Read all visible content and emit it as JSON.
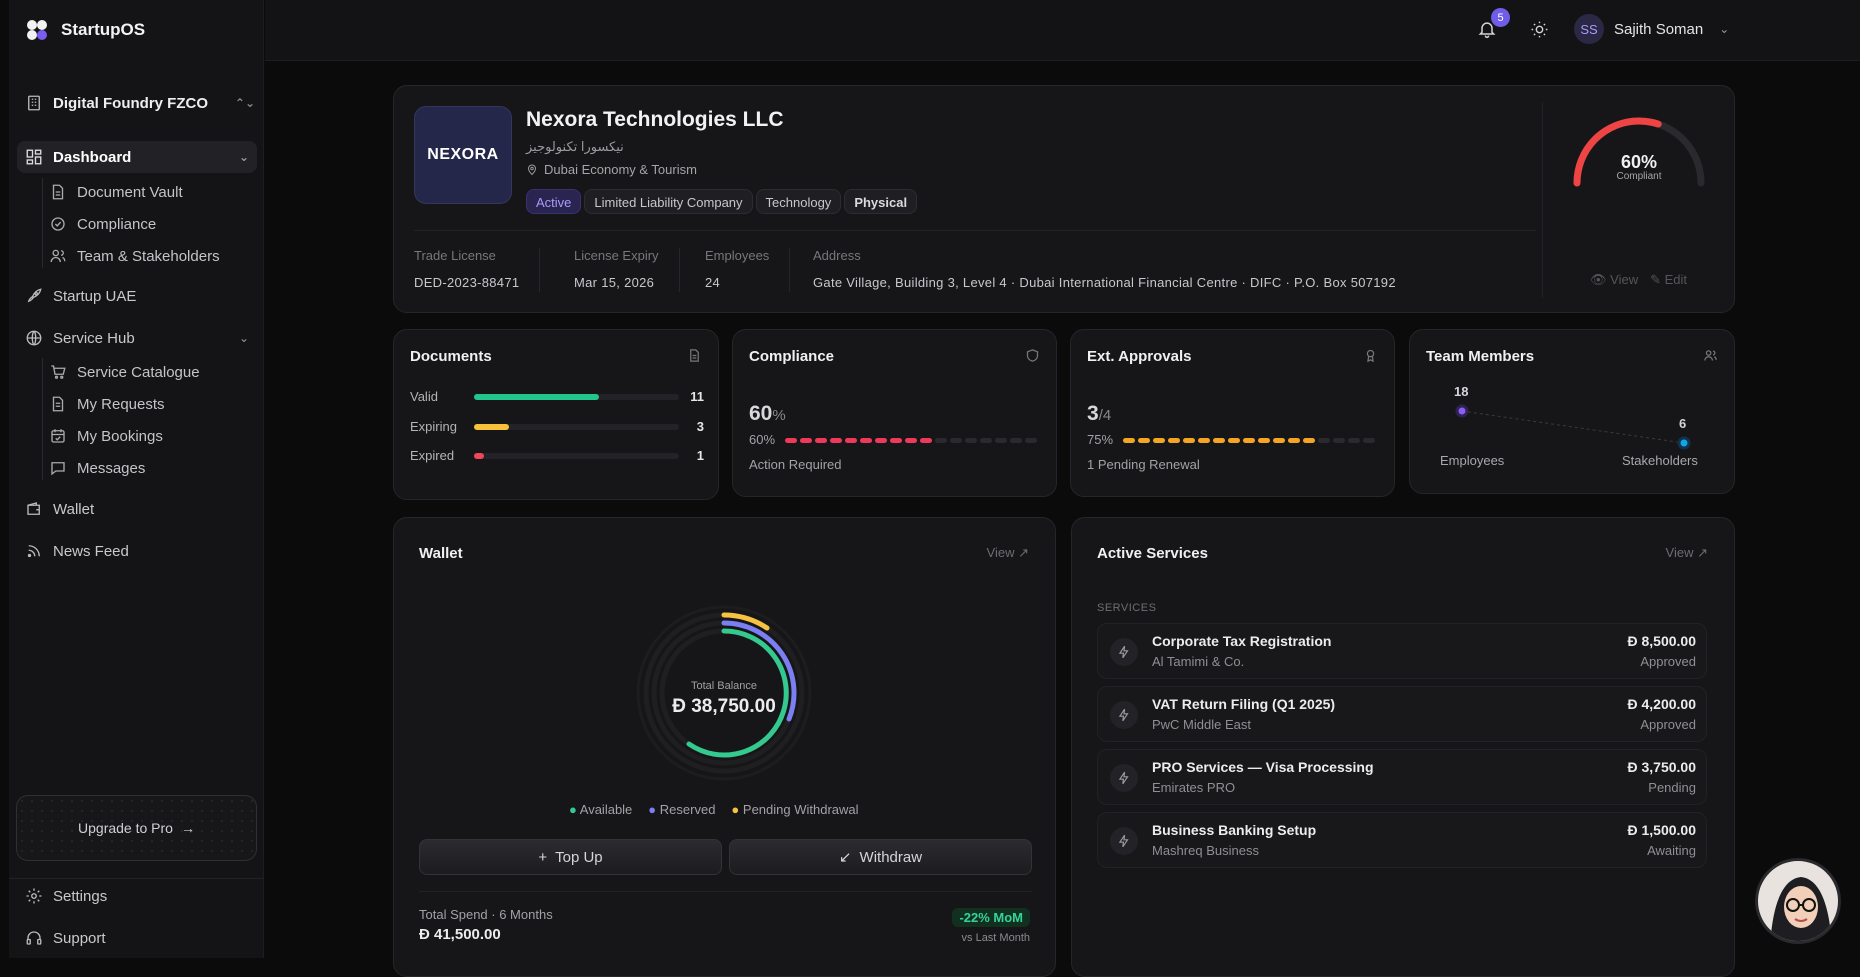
{
  "brand": {
    "name": "StartupOS"
  },
  "org": {
    "name": "Digital Foundry FZCO"
  },
  "nav": {
    "dashboard": "Dashboard",
    "document_vault": "Document Vault",
    "compliance": "Compliance",
    "team": "Team & Stakeholders",
    "startup_uae": "Startup UAE",
    "service_hub": "Service Hub",
    "service_catalogue": "Service Catalogue",
    "my_requests": "My Requests",
    "my_bookings": "My Bookings",
    "messages": "Messages",
    "wallet": "Wallet",
    "news_feed": "News Feed",
    "settings": "Settings",
    "support": "Support"
  },
  "upgrade": {
    "label": "Upgrade to Pro"
  },
  "topbar": {
    "notification_count": "5",
    "user_initials": "SS",
    "user_name": "Sajith Soman"
  },
  "company": {
    "logo_text": "NEXORA",
    "name": "Nexora Technologies LLC",
    "arabic_name": "نيكسورا تكنولوجيز",
    "authority": "Dubai Economy & Tourism",
    "tags": [
      "Active",
      "Limited Liability Company",
      "Technology",
      "Physical"
    ],
    "compliance_pct": "60%",
    "compliance_label": "Compliant",
    "compliance_value": 0.6,
    "view": "View",
    "edit": "Edit",
    "meta": [
      {
        "label": "Trade License",
        "value": "DED-2023-88471"
      },
      {
        "label": "License Expiry",
        "value": "Mar 15, 2026"
      },
      {
        "label": "Employees",
        "value": "24"
      },
      {
        "label": "Address",
        "value": "Gate Village, Building 3, Level 4 · Dubai International Financial Centre · DIFC · P.O. Box 507192"
      }
    ]
  },
  "documents": {
    "title": "Documents",
    "rows": [
      {
        "label": "Valid",
        "count": "11",
        "fraction": 0.61,
        "color": "#22c58b"
      },
      {
        "label": "Expiring",
        "count": "3",
        "fraction": 0.17,
        "color": "#f7c13a"
      },
      {
        "label": "Expired",
        "count": "1",
        "fraction": 0.05,
        "color": "#f0455a"
      }
    ]
  },
  "compliance": {
    "title": "Compliance",
    "big": "60",
    "unit": "%",
    "pct": "60%",
    "status": "Action Required",
    "filled": 10,
    "total": 17,
    "color": "#ee3a5a"
  },
  "approvals": {
    "title": "Ext. Approvals",
    "big": "3",
    "denom": "/4",
    "pct": "75%",
    "status": "1 Pending Renewal",
    "filled": 13,
    "total": 17,
    "color": "#f5a524"
  },
  "team": {
    "title": "Team Members",
    "employees": "18",
    "stakeholders": "6",
    "employees_label": "Employees",
    "stakeholders_label": "Stakeholders"
  },
  "wallet": {
    "title": "Wallet",
    "view": "View",
    "balance_label": "Total Balance",
    "balance": "Đ 38,750.00",
    "legend": [
      {
        "label": "Available",
        "color": "#33c98f"
      },
      {
        "label": "Reserved",
        "color": "#7b7ff2"
      },
      {
        "label": "Pending Withdrawal",
        "color": "#f5c242"
      }
    ],
    "topup": "Top Up",
    "withdraw": "Withdraw",
    "spend_label": "Total Spend · 6 Months",
    "spend_value": "Đ 41,500.00",
    "mom": "-22% MoM",
    "mom_sub": "vs Last Month"
  },
  "services": {
    "title": "Active Services",
    "view": "View",
    "section": "SERVICES",
    "items": [
      {
        "name": "Corporate Tax Registration",
        "vendor": "Al Tamimi & Co.",
        "amount": "Đ 8,500.00",
        "status": "Approved"
      },
      {
        "name": "VAT Return Filing (Q1 2025)",
        "vendor": "PwC Middle East",
        "amount": "Đ 4,200.00",
        "status": "Approved"
      },
      {
        "name": "PRO Services — Visa Processing",
        "vendor": "Emirates PRO",
        "amount": "Đ 3,750.00",
        "status": "Pending"
      },
      {
        "name": "Business Banking Setup",
        "vendor": "Mashreq Business",
        "amount": "Đ 1,500.00",
        "status": "Awaiting"
      }
    ]
  }
}
